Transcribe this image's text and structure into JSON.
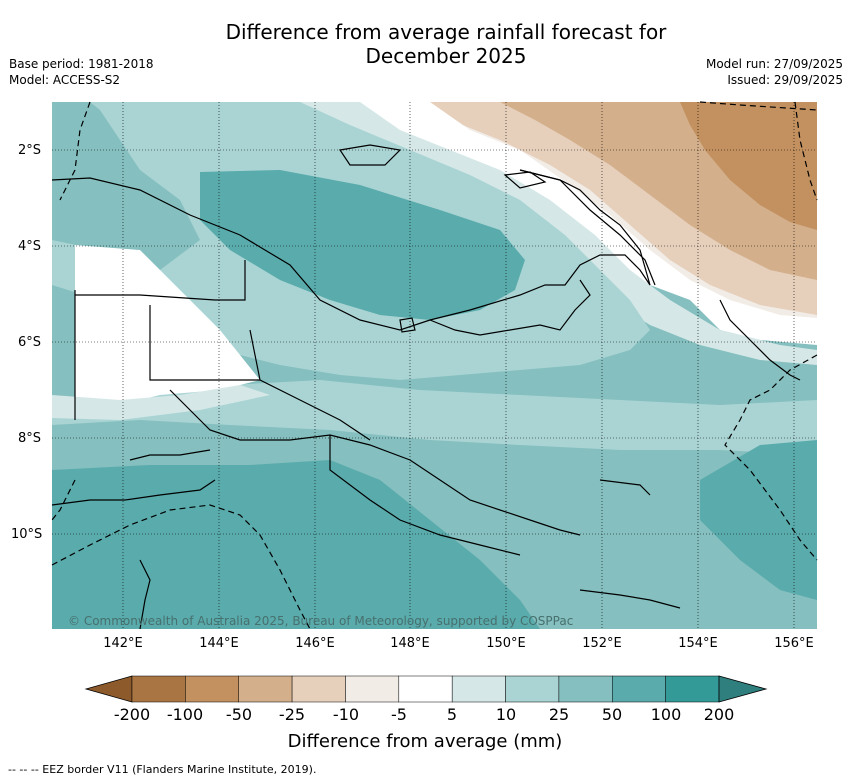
{
  "title_line1": "Difference from average rainfall forecast for",
  "title_line2": "December 2025",
  "base_period": "Base period: 1981-2018",
  "model": "Model: ACCESS-S2",
  "model_run": "Model run: 27/09/2025",
  "issued": "Issued: 29/09/2025",
  "lat_labels": [
    "2°S",
    "4°S",
    "6°S",
    "8°S",
    "10°S"
  ],
  "lon_labels": [
    "142°E",
    "144°E",
    "146°E",
    "148°E",
    "150°E",
    "152°E",
    "154°E",
    "156°E"
  ],
  "copyright": "© Commonwealth of Australia 2025, Bureau of Meteorology, supported by COSPPac",
  "colorbar": {
    "ticks": [
      "-200",
      "-100",
      "-50",
      "-25",
      "-10",
      "-5",
      "5",
      "10",
      "25",
      "50",
      "100",
      "200"
    ],
    "colors": [
      "#a97643",
      "#c3915f",
      "#d3af8c",
      "#e6d0bc",
      "#f2ece7",
      "#ffffff",
      "#d5e8e7",
      "#aad4d4",
      "#85bfbf",
      "#5aabac",
      "#339a98"
    ],
    "under_color": "#8d5a2b",
    "over_color": "#2e7f7d",
    "label": "Difference from average (mm)"
  },
  "footnote": "--  --  -- EEZ border V11 (Flanders Marine Institute, 2019)."
}
